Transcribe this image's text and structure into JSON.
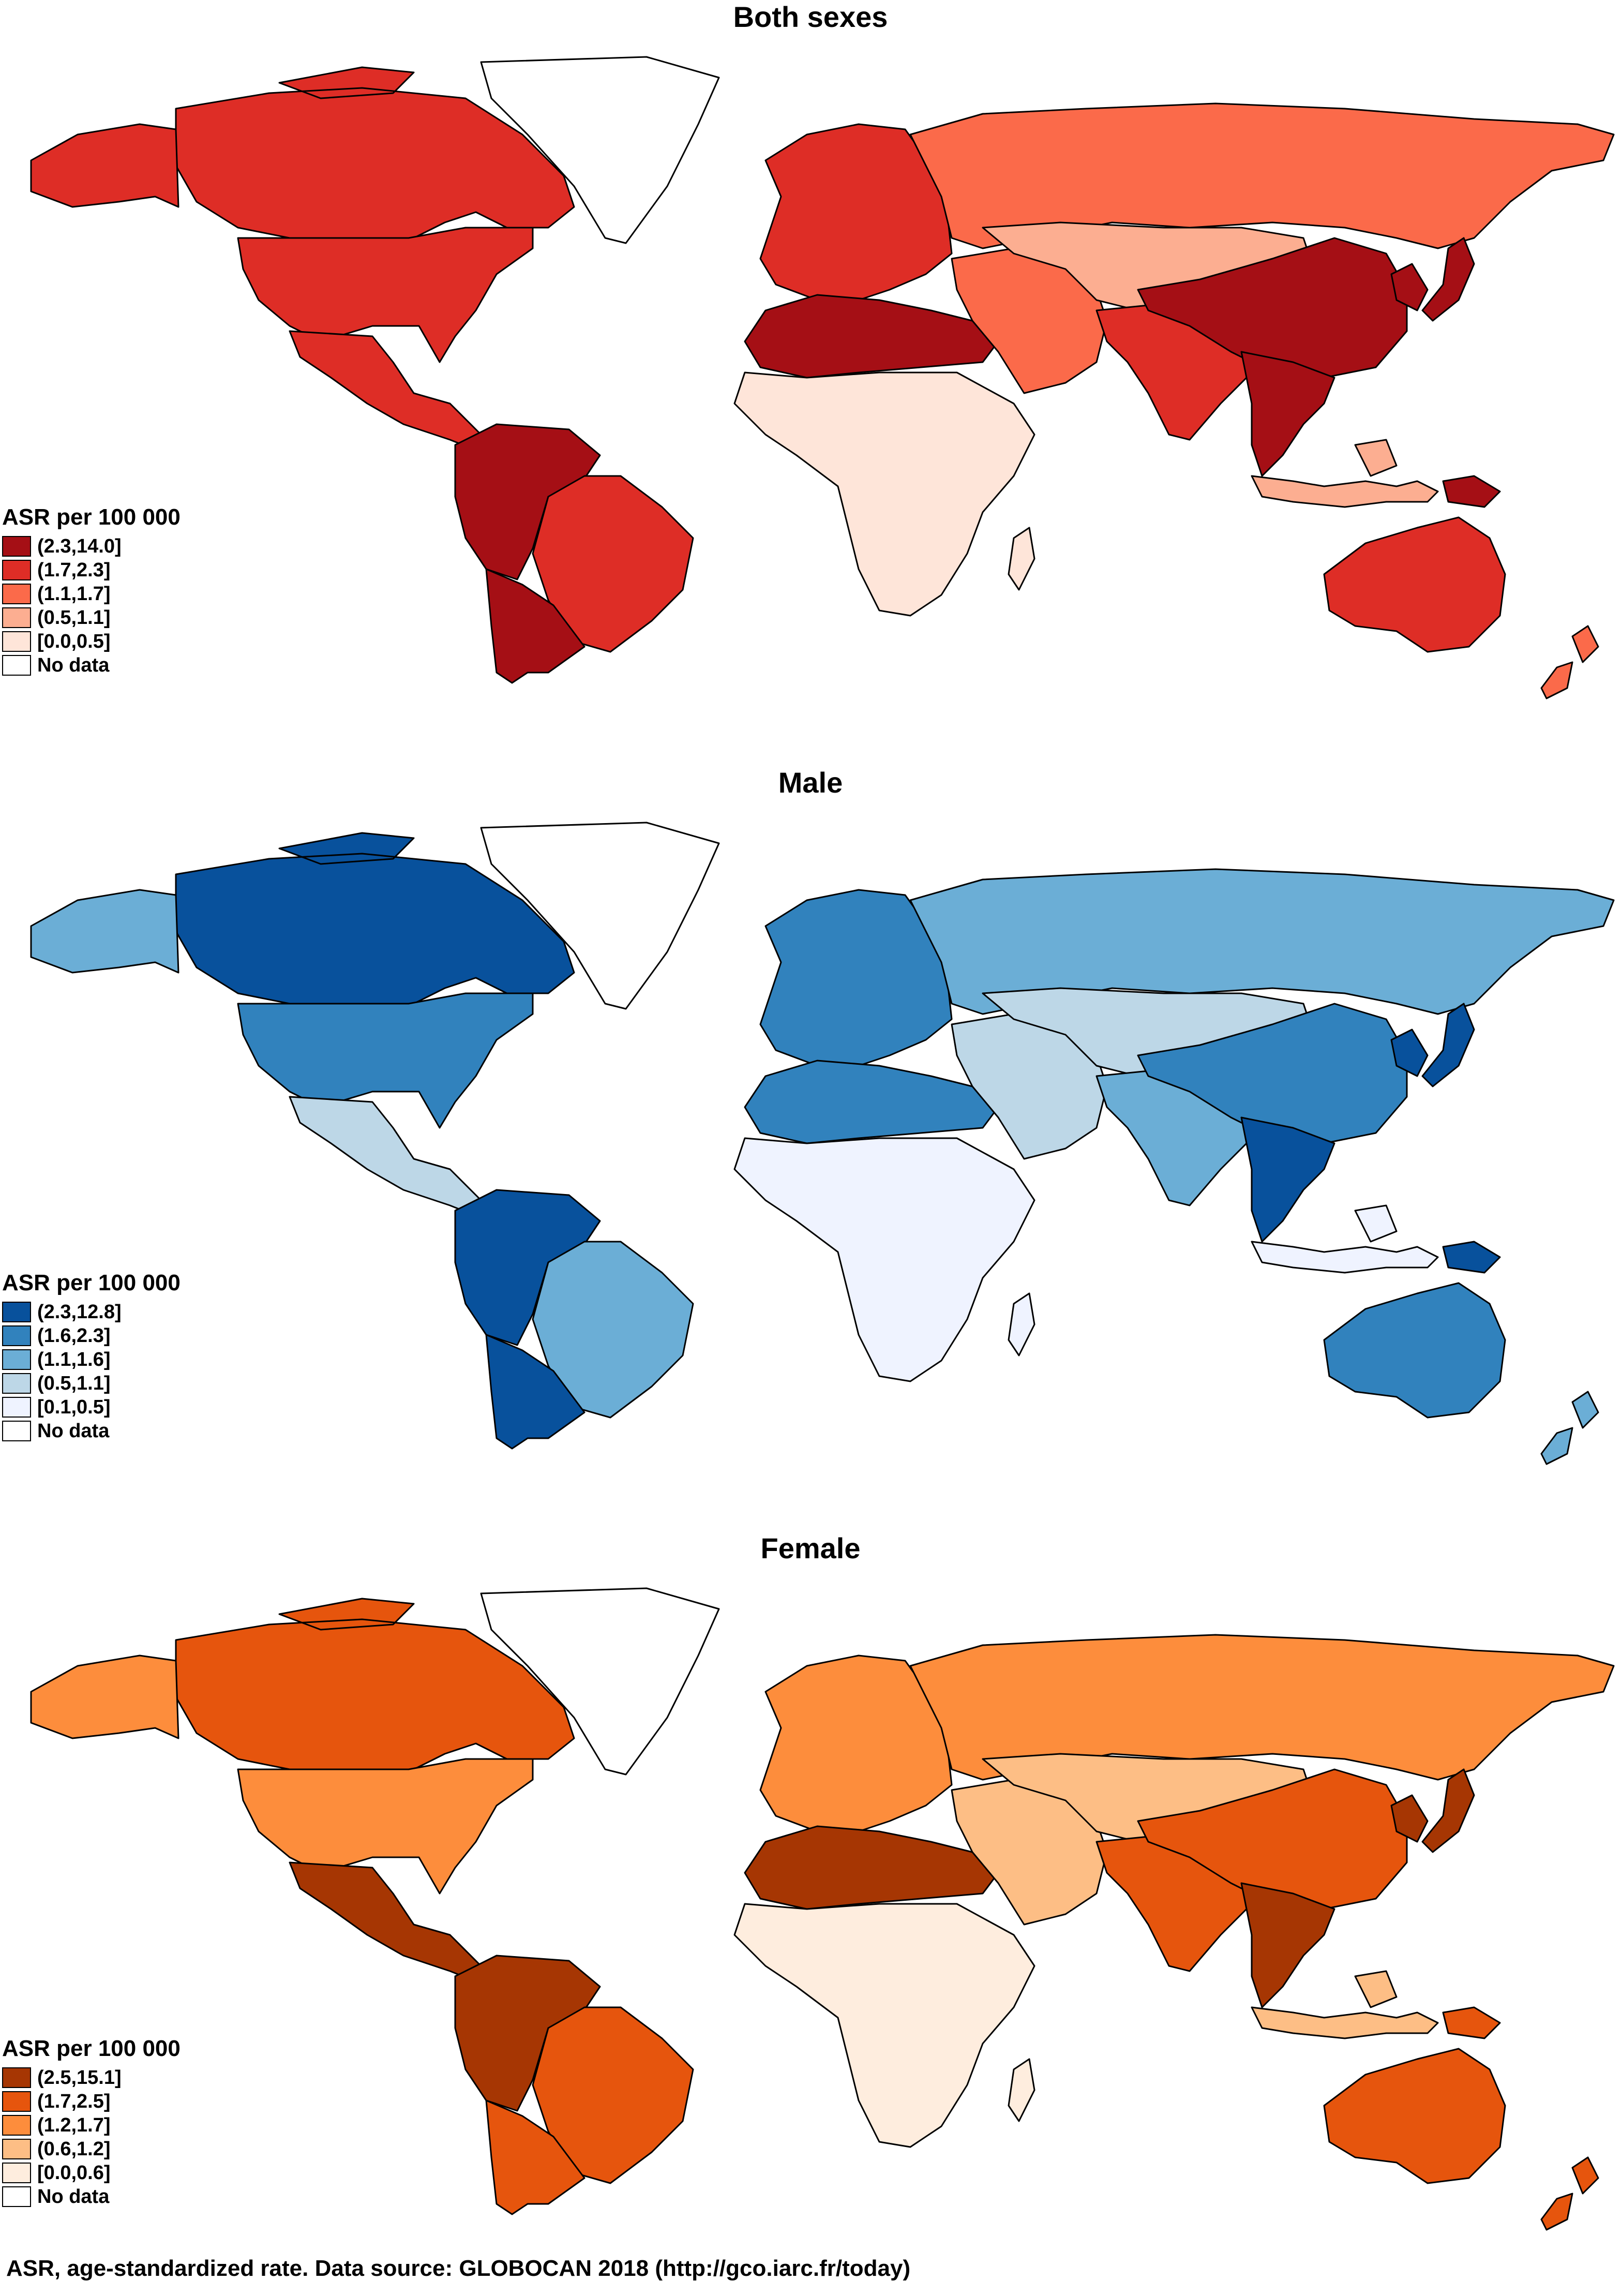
{
  "footer": "ASR, age-standardized rate. Data source: GLOBOCAN 2018 (http://gco.iarc.fr/today)",
  "no_data_color": "#ffffff",
  "panels": [
    {
      "title": "Both sexes",
      "legend_title": "ASR per 100 000",
      "legend": [
        {
          "label": "(2.3,14.0]",
          "color": "#a50f15"
        },
        {
          "label": "(1.7,2.3]",
          "color": "#de2d26"
        },
        {
          "label": "(1.1,1.7]",
          "color": "#fb6a4a"
        },
        {
          "label": "(0.5,1.1]",
          "color": "#fcae91"
        },
        {
          "label": "[0.0,0.5]",
          "color": "#fee5d9"
        },
        {
          "label": "No data",
          "color": "#ffffff"
        }
      ]
    },
    {
      "title": "Male",
      "legend_title": "ASR per 100 000",
      "legend": [
        {
          "label": "(2.3,12.8]",
          "color": "#08519c"
        },
        {
          "label": "(1.6,2.3]",
          "color": "#3182bd"
        },
        {
          "label": "(1.1,1.6]",
          "color": "#6baed6"
        },
        {
          "label": "(0.5,1.1]",
          "color": "#bdd7e7"
        },
        {
          "label": "[0.1,0.5]",
          "color": "#eff3ff"
        },
        {
          "label": "No data",
          "color": "#ffffff"
        }
      ]
    },
    {
      "title": "Female",
      "legend_title": "ASR per 100 000",
      "legend": [
        {
          "label": "(2.5,15.1]",
          "color": "#a63603"
        },
        {
          "label": "(1.7,2.5]",
          "color": "#e6550d"
        },
        {
          "label": "(1.2,1.7]",
          "color": "#fd8d3c"
        },
        {
          "label": "(0.6,1.2]",
          "color": "#fdbe85"
        },
        {
          "label": "[0.0,0.6]",
          "color": "#feedde"
        },
        {
          "label": "No data",
          "color": "#ffffff"
        }
      ]
    }
  ],
  "regions": [
    {
      "name": "greenland",
      "classes": [
        5,
        5,
        5
      ]
    },
    {
      "name": "canada",
      "classes": [
        1,
        0,
        1
      ]
    },
    {
      "name": "alaska",
      "classes": [
        1,
        2,
        2
      ]
    },
    {
      "name": "usa",
      "classes": [
        1,
        1,
        2
      ]
    },
    {
      "name": "mexico-central-america",
      "classes": [
        1,
        3,
        0
      ]
    },
    {
      "name": "south-america-north",
      "classes": [
        0,
        0,
        0
      ]
    },
    {
      "name": "brazil",
      "classes": [
        1,
        2,
        1
      ]
    },
    {
      "name": "southern-cone",
      "classes": [
        0,
        0,
        1
      ]
    },
    {
      "name": "europe",
      "classes": [
        1,
        1,
        2
      ]
    },
    {
      "name": "russia",
      "classes": [
        2,
        2,
        2
      ]
    },
    {
      "name": "north-africa",
      "classes": [
        0,
        1,
        0
      ]
    },
    {
      "name": "sub-saharan-africa",
      "classes": [
        4,
        4,
        4
      ]
    },
    {
      "name": "middle-east",
      "classes": [
        2,
        3,
        3
      ]
    },
    {
      "name": "central-asia",
      "classes": [
        3,
        3,
        3
      ]
    },
    {
      "name": "south-asia",
      "classes": [
        1,
        2,
        1
      ]
    },
    {
      "name": "china",
      "classes": [
        0,
        1,
        1
      ]
    },
    {
      "name": "southeast-asia",
      "classes": [
        0,
        0,
        0
      ]
    },
    {
      "name": "japan-korea",
      "classes": [
        0,
        0,
        0
      ]
    },
    {
      "name": "indonesia",
      "classes": [
        3,
        4,
        3
      ]
    },
    {
      "name": "australia",
      "classes": [
        1,
        1,
        1
      ]
    },
    {
      "name": "new-zealand",
      "classes": [
        2,
        2,
        1
      ]
    },
    {
      "name": "madagascar",
      "classes": [
        4,
        4,
        4
      ]
    },
    {
      "name": "papua-new-guinea",
      "classes": [
        0,
        0,
        1
      ]
    }
  ]
}
